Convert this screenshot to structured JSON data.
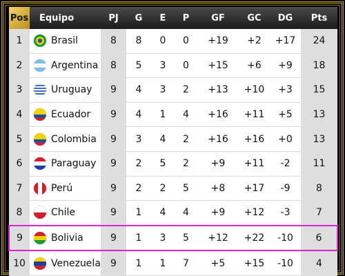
{
  "table": {
    "columns": [
      "Pos",
      "Equipo",
      "PJ",
      "G",
      "E",
      "P",
      "GF",
      "GC",
      "DG",
      "Pts"
    ],
    "rows": [
      [
        1,
        "Brasil",
        8,
        8,
        0,
        0,
        "+19",
        "+2",
        "+17",
        24
      ],
      [
        2,
        "Argentina",
        8,
        5,
        3,
        0,
        "+15",
        "+6",
        "+9",
        18
      ],
      [
        3,
        "Uruguay",
        9,
        4,
        3,
        2,
        "+13",
        "+10",
        "+3",
        15
      ],
      [
        4,
        "Ecuador",
        9,
        4,
        1,
        4,
        "+16",
        "+11",
        "+5",
        13
      ],
      [
        5,
        "Colombia",
        9,
        3,
        4,
        2,
        "+16",
        "+16",
        "+0",
        13
      ],
      [
        6,
        "Paraguay",
        9,
        2,
        5,
        2,
        "+9",
        "+11",
        "-2",
        11
      ],
      [
        7,
        "Perú",
        9,
        2,
        2,
        5,
        "+8",
        "+17",
        "-9",
        8
      ],
      [
        8,
        "Chile",
        9,
        1,
        4,
        4,
        "+9",
        "+12",
        "-3",
        7
      ],
      [
        9,
        "Bolivia",
        9,
        1,
        3,
        5,
        "+12",
        "+22",
        "-10",
        6
      ],
      [
        10,
        "Venezuela",
        9,
        1,
        1,
        7,
        "+5",
        "+15",
        "-10",
        4
      ]
    ]
  }
}
